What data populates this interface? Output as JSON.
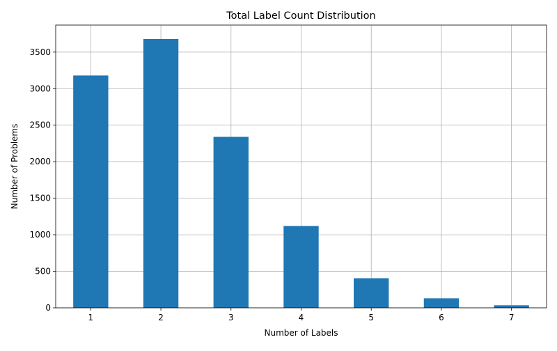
{
  "chart_data": {
    "type": "bar",
    "title": "Total Label Count Distribution",
    "xlabel": "Number of Labels",
    "ylabel": "Number of Problems",
    "categories": [
      "1",
      "2",
      "3",
      "4",
      "5",
      "6",
      "7"
    ],
    "values": [
      3180,
      3680,
      2340,
      1120,
      405,
      130,
      35
    ],
    "yticks": [
      0,
      500,
      1000,
      1500,
      2000,
      2500,
      3000,
      3500
    ],
    "ylim": [
      0,
      3870
    ],
    "grid": true,
    "bar_color": "#1f77b4"
  }
}
